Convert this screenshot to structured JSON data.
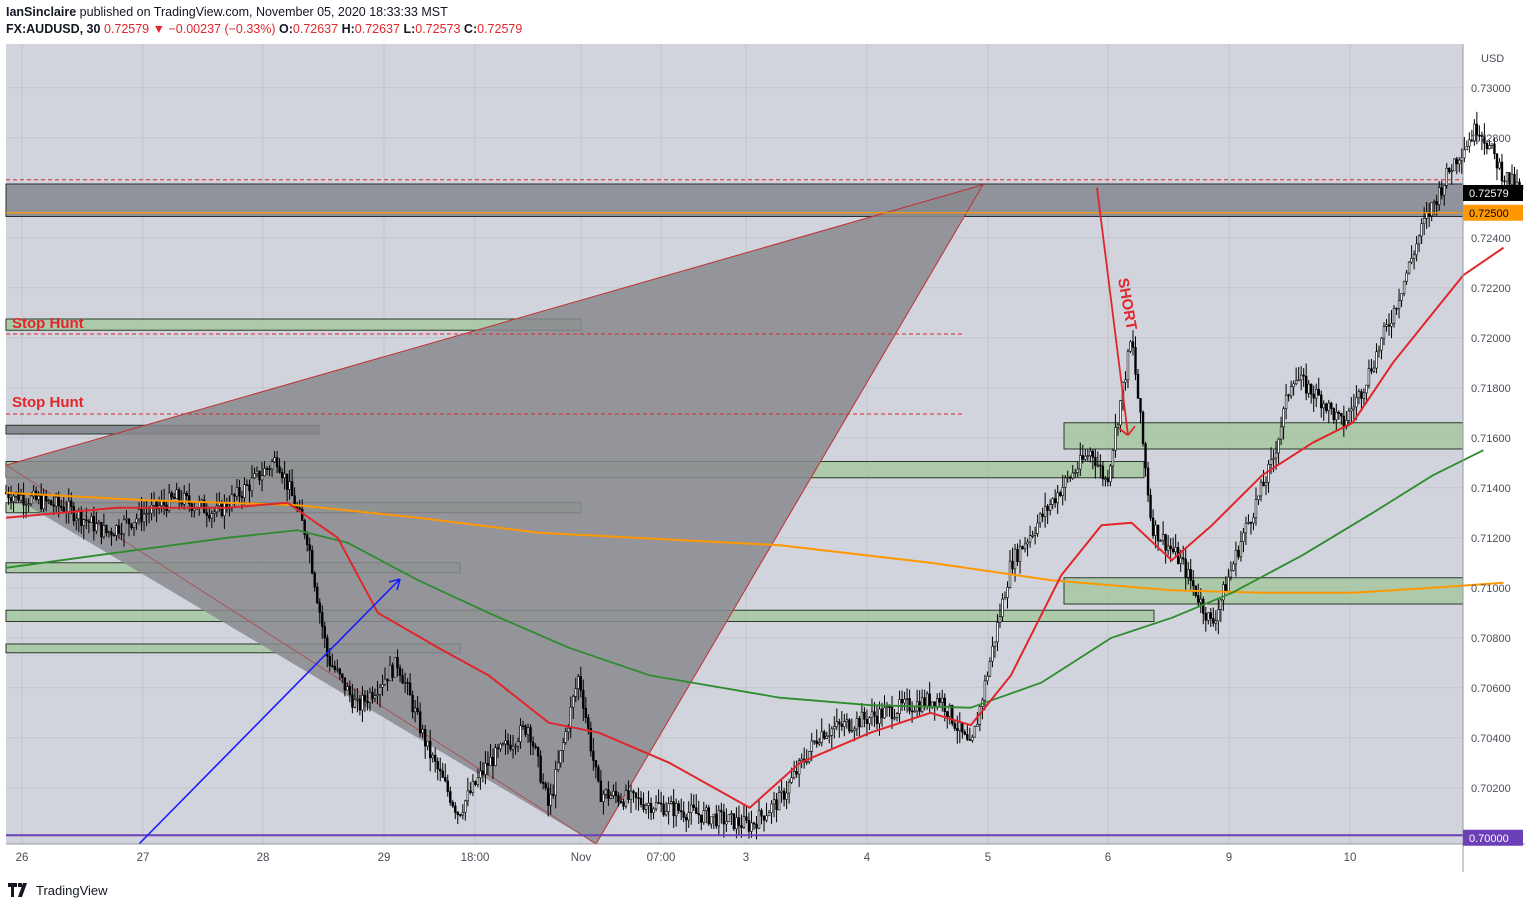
{
  "header": {
    "publisher": "IanSinclaire",
    "published_text": "published on TradingView.com, November 05, 2020 18:33:33 MST",
    "symbol": "FX:AUDUSD, 30",
    "last": "0.72579",
    "change": "−0.00237 (−0.33%)",
    "o_label": "O:",
    "o": "0.72637",
    "h_label": "H:",
    "h": "0.72637",
    "l_label": "L:",
    "l": "0.72573",
    "c_label": "C:",
    "c": "0.72579"
  },
  "footer": {
    "brand": "TradingView",
    "logo_icon": "tradingview-logo-icon"
  },
  "colors": {
    "background": "#d1d4dc",
    "candle": "#000000",
    "ema_fast": "#e0262c",
    "ema_mid": "#2e8b2e",
    "ema_slow": "#ff9800",
    "zone": "#9fc59a",
    "annotation": "#e0262c",
    "arrow_blue": "#1a1aff",
    "pattern": "#8a8a8f",
    "support_line": "#6b3fb5"
  },
  "chart_data": {
    "type": "candlestick",
    "currency": "USD",
    "ylim": [
      0.69975,
      0.73175
    ],
    "y_ticks": [
      0.73,
      0.728,
      0.724,
      0.722,
      0.72,
      0.718,
      0.716,
      0.714,
      0.712,
      0.71,
      0.708,
      0.706,
      0.704,
      0.702
    ],
    "x_ticks": [
      "26",
      "27",
      "28",
      "29",
      "18:00",
      "Nov",
      "07:00",
      "3",
      "4",
      "5",
      "6",
      "9",
      "10"
    ],
    "price_labels": [
      {
        "value": 0.72579,
        "text": "0.72579",
        "bg": "#000000",
        "fg": "#ffffff"
      },
      {
        "value": 0.725,
        "text": "0.72500",
        "bg": "#ff9800",
        "fg": "#000000"
      },
      {
        "value": 0.7,
        "text": "0.70000",
        "bg": "#6b3fb5",
        "fg": "#ffffff"
      }
    ],
    "annotations": {
      "stop_hunt_1": "Stop Hunt",
      "stop_hunt_2": "Stop Hunt",
      "short": "SHORT"
    },
    "resistance_zone": [
      0.72485,
      0.72615
    ],
    "lines": {
      "red_dashed_top": 0.72632,
      "orange_level": 0.725,
      "red_dashed_stop_1": 0.72015,
      "red_dashed_stop_2": 0.71695,
      "purple_support": 0.7001
    },
    "zones": [
      {
        "from": "2020-10-25 20:00",
        "to": "2020-10-30 12:00",
        "low": 0.7203,
        "high": 0.72075
      },
      {
        "from": "2020-10-25 20:00",
        "to": "2020-10-28 12:00",
        "low": 0.71615,
        "high": 0.7165
      },
      {
        "from": "2020-10-25 20:00",
        "to": "2020-11-05 12:00",
        "low": 0.7144,
        "high": 0.71505
      },
      {
        "from": "2020-10-25 20:00",
        "to": "2020-10-30 12:00",
        "low": 0.713,
        "high": 0.7134
      },
      {
        "from": "2020-10-25 20:00",
        "to": "2020-10-29 12:00",
        "low": 0.7106,
        "high": 0.711
      },
      {
        "from": "2020-10-25 20:00",
        "to": "2020-11-05 19:00",
        "low": 0.70865,
        "high": 0.7091
      },
      {
        "from": "2020-10-25 20:00",
        "to": "2020-10-29 12:00",
        "low": 0.7074,
        "high": 0.70775
      },
      {
        "from": "2020-11-04 16:00",
        "to": "2020-11-10 23:00",
        "low": 0.71555,
        "high": 0.7166
      },
      {
        "from": "2020-11-04 16:00",
        "to": "2020-11-10 23:00",
        "low": 0.70935,
        "high": 0.7104
      }
    ],
    "pattern_triangle": [
      [
        "2020-10-25 20:00",
        0.7149
      ],
      [
        "2020-11-04 00:00",
        0.72612
      ],
      [
        "2020-10-31 18:00",
        0.69975
      ]
    ],
    "short_arrow": [
      [
        "2020-11-04 23:00",
        0.726
      ],
      [
        "2020-11-05 18:00",
        0.7161
      ]
    ],
    "blue_arrow": [
      [
        "2020-10-27 00:00",
        0.6999
      ],
      [
        "2020-10-29 02:00",
        0.71035
      ]
    ],
    "candles_ohlc_keypoints": [
      [
        "2020-10-25 20:00",
        0.7138
      ],
      [
        "2020-10-26 08:00",
        0.7132
      ],
      [
        "2020-10-26 16:00",
        0.7122
      ],
      [
        "2020-10-27 06:00",
        0.7136
      ],
      [
        "2020-10-27 14:00",
        0.713
      ],
      [
        "2020-10-27 22:00",
        0.7144
      ],
      [
        "2020-10-28 02:00",
        0.7152
      ],
      [
        "2020-10-28 08:00",
        0.712
      ],
      [
        "2020-10-28 12:00",
        0.7072
      ],
      [
        "2020-10-28 18:00",
        0.7052
      ],
      [
        "2020-10-29 02:00",
        0.707
      ],
      [
        "2020-10-29 08:00",
        0.7035
      ],
      [
        "2020-10-29 14:00",
        0.701
      ],
      [
        "2020-10-29 20:00",
        0.703
      ],
      [
        "2020-10-30 04:00",
        0.7045
      ],
      [
        "2020-10-30 08:00",
        0.7012
      ],
      [
        "2020-10-30 14:00",
        0.7065
      ],
      [
        "2020-10-30 18:00",
        0.7018
      ],
      [
        "2020-11-01 00:00",
        0.7005
      ],
      [
        "2020-11-01 06:00",
        0.7015
      ],
      [
        "2020-11-01 14:00",
        0.7042
      ],
      [
        "2020-11-02 06:00",
        0.7052
      ],
      [
        "2020-11-02 14:00",
        0.7056
      ],
      [
        "2020-11-02 20:00",
        0.7035
      ],
      [
        "2020-11-03 04:00",
        0.711
      ],
      [
        "2020-11-03 14:00",
        0.714
      ],
      [
        "2020-11-03 20:00",
        0.7155
      ],
      [
        "2020-11-03 23:00",
        0.7142
      ],
      [
        "2020-11-04 04:00",
        0.72
      ],
      [
        "2020-11-04 08:00",
        0.7125
      ],
      [
        "2020-11-04 14:00",
        0.711
      ],
      [
        "2020-11-04 20:00",
        0.7085
      ],
      [
        "2020-11-05 02:00",
        0.712
      ],
      [
        "2020-11-05 08:00",
        0.715
      ],
      [
        "2020-11-05 12:00",
        0.7185
      ],
      [
        "2020-11-05 18:00",
        0.7175
      ],
      [
        "2020-11-05 22:00",
        0.7165
      ],
      [
        "2020-11-06 02:00",
        0.718
      ],
      [
        "2020-11-06 08:00",
        0.721
      ],
      [
        "2020-11-06 14:00",
        0.7245
      ],
      [
        "2020-11-06 20:00",
        0.727
      ],
      [
        "2020-11-07 01:00",
        0.7285
      ],
      [
        "2020-11-07 06:00",
        0.7265
      ],
      [
        "2020-11-07 10:00",
        0.72579
      ]
    ],
    "ema_fast": [
      [
        "2020-10-25 20:00",
        0.7128
      ],
      [
        "2020-10-26 18:00",
        0.7132
      ],
      [
        "2020-10-27 16:00",
        0.7132
      ],
      [
        "2020-10-28 04:00",
        0.7134
      ],
      [
        "2020-10-28 14:00",
        0.712
      ],
      [
        "2020-10-28 22:00",
        0.709
      ],
      [
        "2020-10-29 10:00",
        0.7076
      ],
      [
        "2020-10-29 20:00",
        0.7065
      ],
      [
        "2020-10-30 08:00",
        0.7046
      ],
      [
        "2020-10-30 18:00",
        0.7042
      ],
      [
        "2020-10-31 08:00",
        0.703
      ],
      [
        "2020-11-01 00:00",
        0.7012
      ],
      [
        "2020-11-01 10:00",
        0.703
      ],
      [
        "2020-11-02 00:00",
        0.7042
      ],
      [
        "2020-11-02 12:00",
        0.705
      ],
      [
        "2020-11-02 20:00",
        0.7045
      ],
      [
        "2020-11-03 04:00",
        0.7065
      ],
      [
        "2020-11-03 14:00",
        0.7105
      ],
      [
        "2020-11-03 22:00",
        0.7125
      ],
      [
        "2020-11-04 04:00",
        0.7126
      ],
      [
        "2020-11-04 12:00",
        0.7111
      ],
      [
        "2020-11-04 20:00",
        0.7125
      ],
      [
        "2020-11-05 06:00",
        0.7145
      ],
      [
        "2020-11-05 16:00",
        0.7158
      ],
      [
        "2020-11-06 00:00",
        0.7166
      ],
      [
        "2020-11-06 08:00",
        0.719
      ],
      [
        "2020-11-06 16:00",
        0.721
      ],
      [
        "2020-11-06 22:00",
        0.7225
      ],
      [
        "2020-11-07 06:00",
        0.7236
      ]
    ],
    "ema_mid": [
      [
        "2020-10-25 20:00",
        0.7108
      ],
      [
        "2020-10-26 18:00",
        0.7114
      ],
      [
        "2020-10-27 16:00",
        0.712
      ],
      [
        "2020-10-28 06:00",
        0.7123
      ],
      [
        "2020-10-28 16:00",
        0.7118
      ],
      [
        "2020-10-29 06:00",
        0.7103
      ],
      [
        "2020-10-29 20:00",
        0.709
      ],
      [
        "2020-10-30 12:00",
        0.7076
      ],
      [
        "2020-10-31 04:00",
        0.7065
      ],
      [
        "2020-11-01 06:00",
        0.7056
      ],
      [
        "2020-11-02 00:00",
        0.7053
      ],
      [
        "2020-11-02 20:00",
        0.7052
      ],
      [
        "2020-11-03 10:00",
        0.7062
      ],
      [
        "2020-11-04 00:00",
        0.708
      ],
      [
        "2020-11-04 12:00",
        0.7088
      ],
      [
        "2020-11-05 00:00",
        0.7098
      ],
      [
        "2020-11-05 14:00",
        0.7113
      ],
      [
        "2020-11-06 04:00",
        0.713
      ],
      [
        "2020-11-06 16:00",
        0.7145
      ],
      [
        "2020-11-07 02:00",
        0.7155
      ]
    ],
    "ema_slow": [
      [
        "2020-10-25 20:00",
        0.7138
      ],
      [
        "2020-10-27 00:00",
        0.7135
      ],
      [
        "2020-10-28 06:00",
        0.7133
      ],
      [
        "2020-10-29 06:00",
        0.7128
      ],
      [
        "2020-10-30 06:00",
        0.7122
      ],
      [
        "2020-11-01 06:00",
        0.7117
      ],
      [
        "2020-11-02 12:00",
        0.711
      ],
      [
        "2020-11-03 12:00",
        0.7103
      ],
      [
        "2020-11-04 12:00",
        0.7099
      ],
      [
        "2020-11-05 06:00",
        0.7098
      ],
      [
        "2020-11-06 00:00",
        0.7098
      ],
      [
        "2020-11-06 16:00",
        0.71
      ],
      [
        "2020-11-07 06:00",
        0.7102
      ]
    ]
  }
}
